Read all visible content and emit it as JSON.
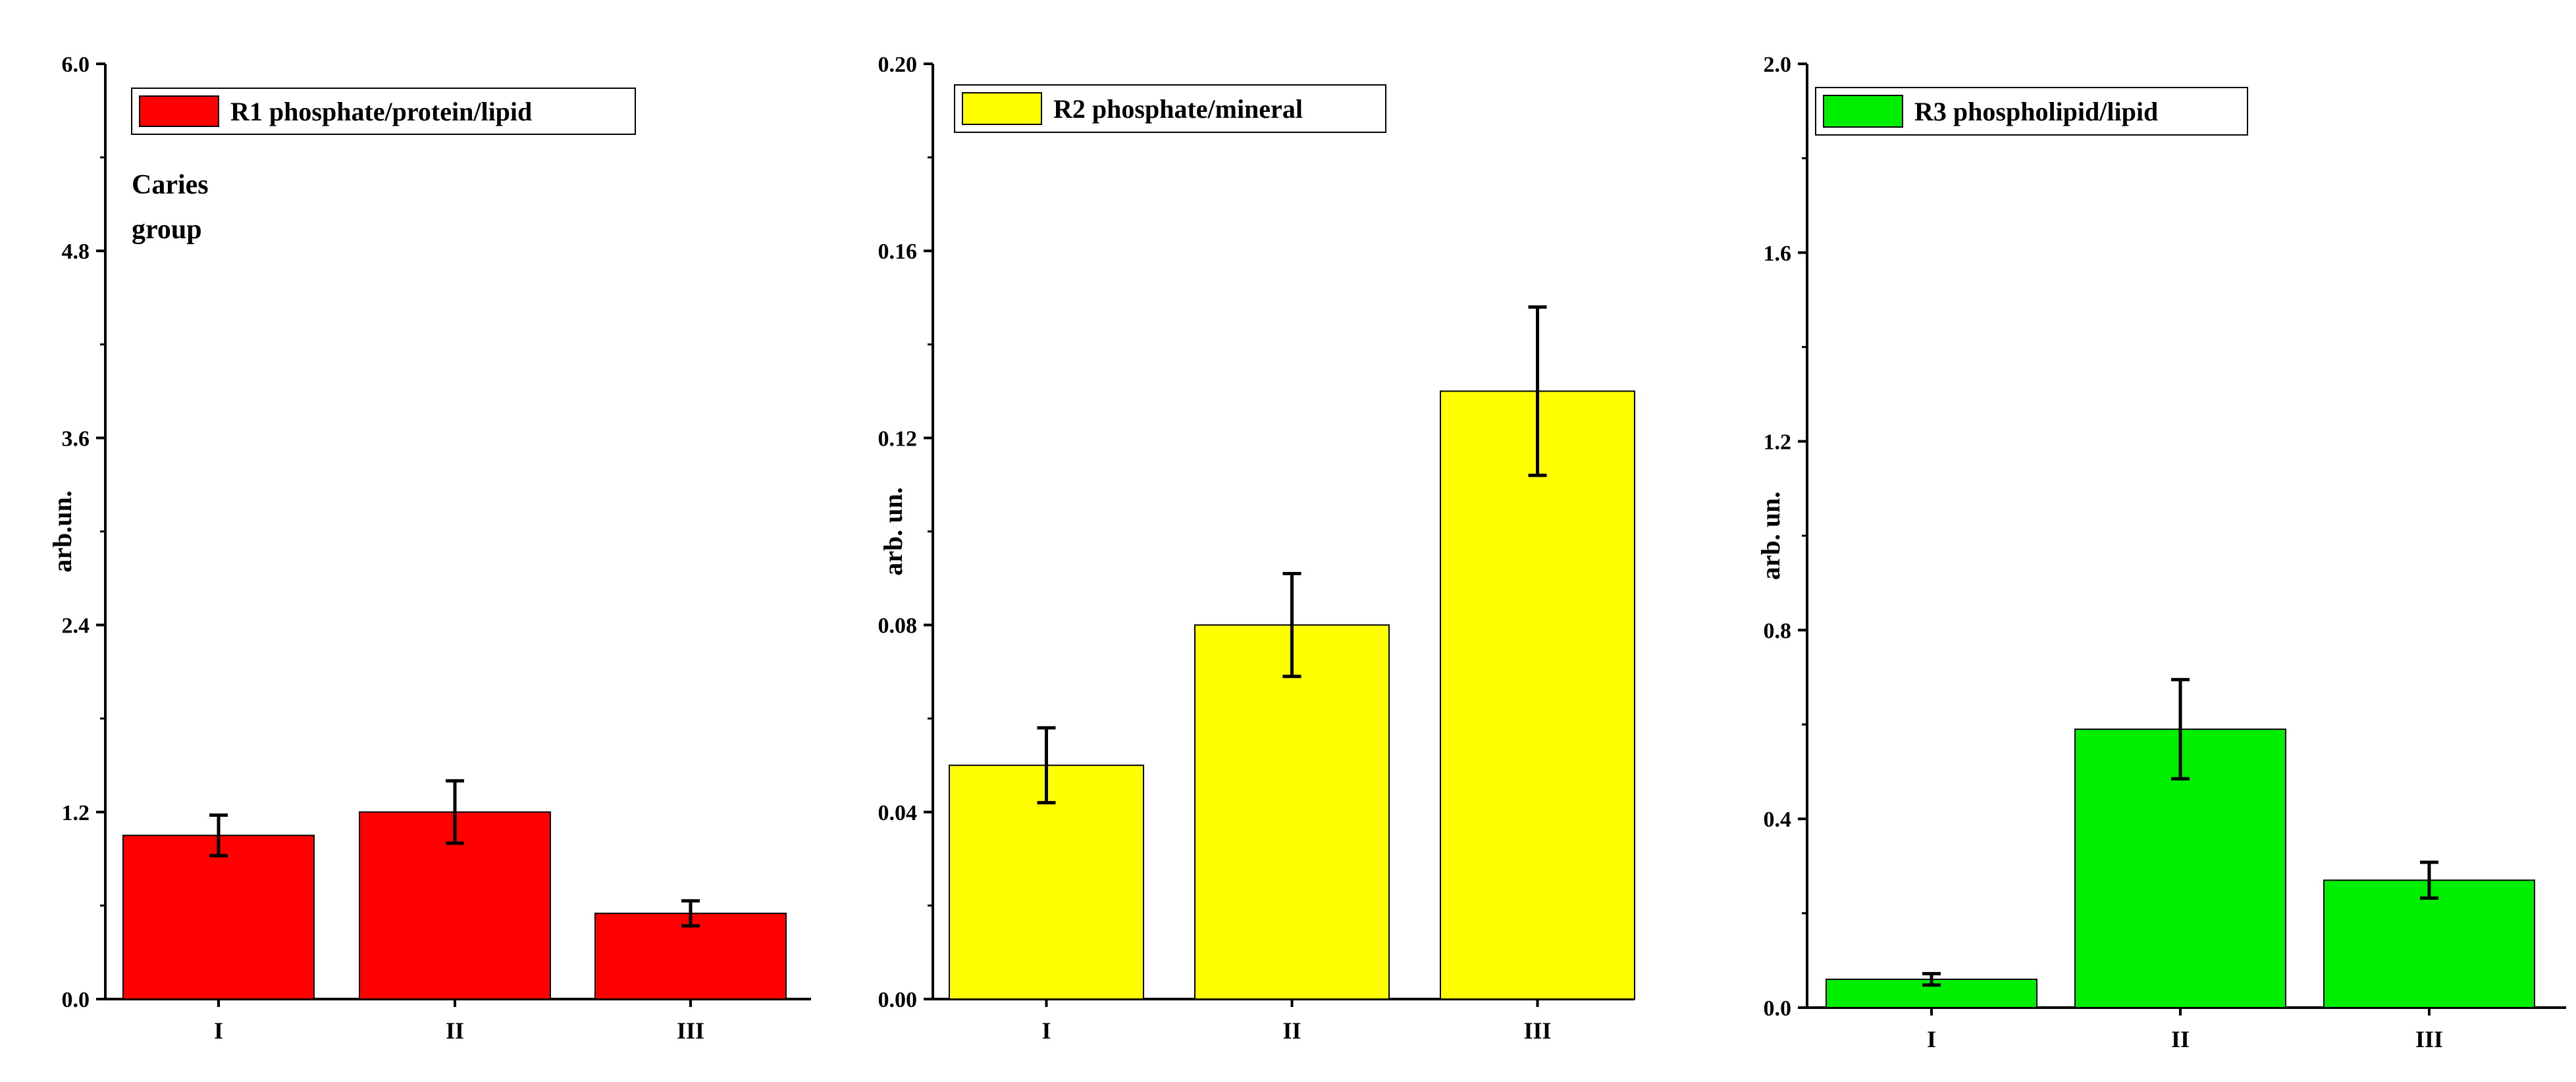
{
  "chart_data": [
    {
      "type": "bar",
      "categories": [
        "I",
        "II",
        "III"
      ],
      "values": [
        1.05,
        1.2,
        0.55
      ],
      "errors": [
        0.13,
        0.2,
        0.08
      ],
      "ylim": [
        0,
        6.0
      ],
      "yticks": [
        "0.0",
        "1.2",
        "2.4",
        "3.6",
        "4.8",
        "6.0"
      ],
      "ylabel": "arb.un.",
      "xlabel": "",
      "legend": "R1 phosphate/protein/lipid",
      "annotation": [
        "Caries",
        "group"
      ],
      "color": "#ff0000"
    },
    {
      "type": "bar",
      "categories": [
        "I",
        "II",
        "III"
      ],
      "values": [
        0.05,
        0.08,
        0.13
      ],
      "errors": [
        0.008,
        0.011,
        0.018
      ],
      "ylim": [
        0,
        0.2
      ],
      "yticks": [
        "0.00",
        "0.04",
        "0.08",
        "0.12",
        "0.16",
        "0.20"
      ],
      "ylabel": "arb. un.",
      "xlabel": "",
      "legend": "R2 phosphate/mineral",
      "annotation": [],
      "color": "#ffff00"
    },
    {
      "type": "bar",
      "categories": [
        "I",
        "II",
        "III"
      ],
      "values": [
        0.06,
        0.59,
        0.27
      ],
      "errors": [
        0.012,
        0.105,
        0.038
      ],
      "ylim": [
        0,
        2.0
      ],
      "yticks": [
        "0.0",
        "0.4",
        "0.8",
        "1.2",
        "1.6",
        "2.0"
      ],
      "ylabel": "arb. un.",
      "xlabel": "",
      "legend": "R3 phospholipid/lipid",
      "annotation": [],
      "color": "#00ee00"
    }
  ]
}
